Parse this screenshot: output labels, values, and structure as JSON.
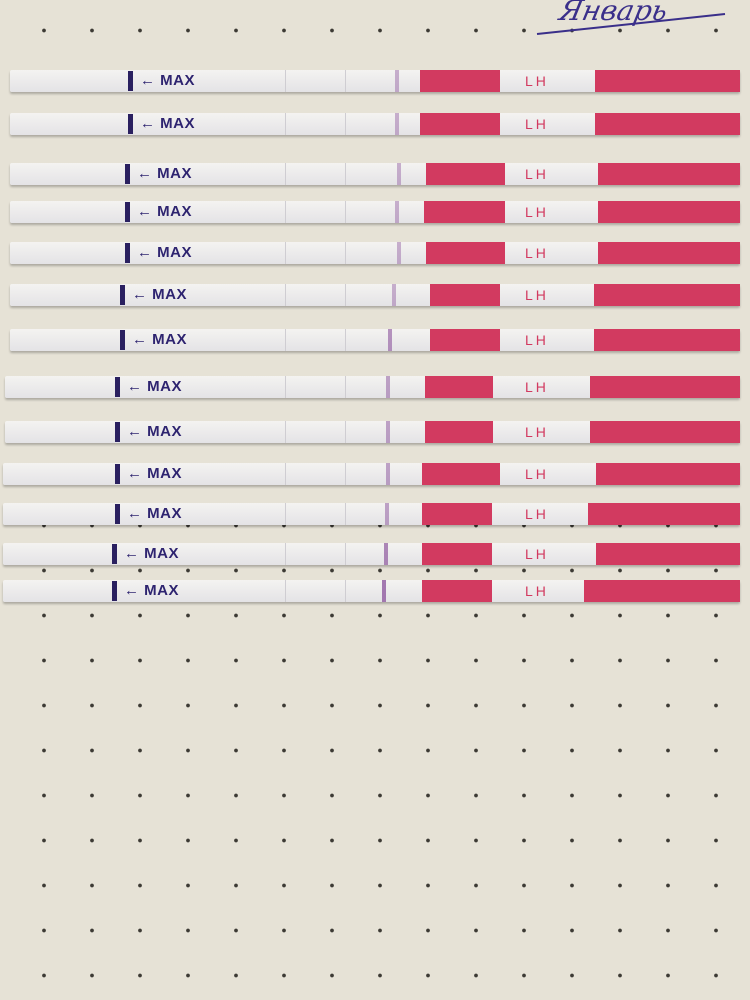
{
  "handwriting": "Январь",
  "strip_labels": {
    "max": "← MAX",
    "lh": "LH"
  },
  "colors": {
    "paper": "#e6e2d6",
    "dye": "#d23a60",
    "control": "#2a2060",
    "test_line": "#9a6aa8"
  },
  "strip_count": 13,
  "test_line_intensity": [
    0.5,
    0.5,
    0.5,
    0.5,
    0.5,
    0.5,
    0.7,
    0.6,
    0.6,
    0.6,
    0.6,
    0.8,
    0.9
  ]
}
